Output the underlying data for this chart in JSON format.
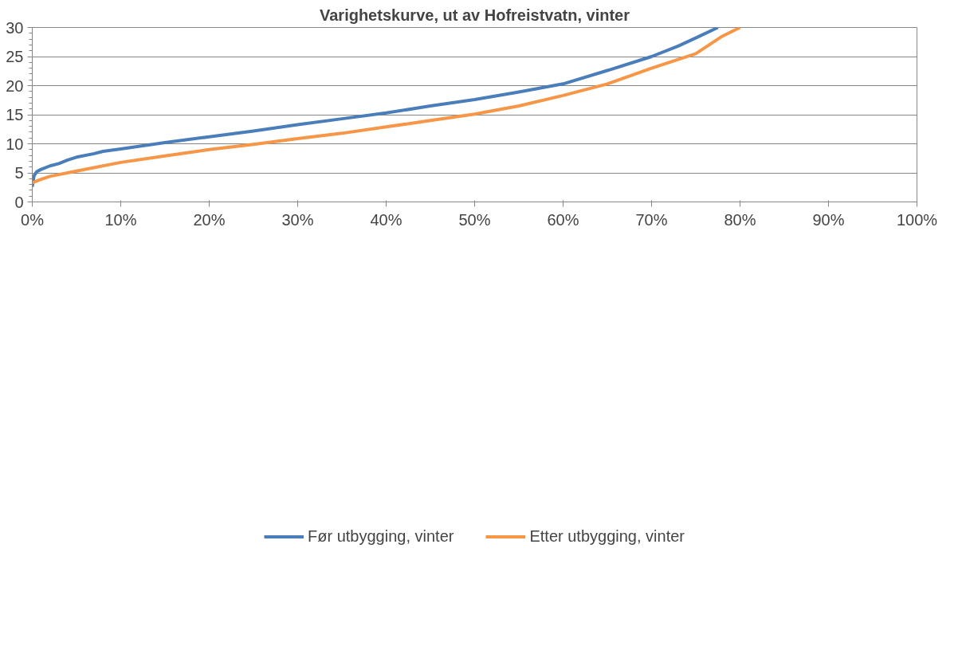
{
  "chart_data": {
    "type": "line",
    "title": "Varighetskurve, ut av Hofreistvatn, vinter",
    "xlim": [
      0,
      100
    ],
    "xticks": [
      {
        "value": 0,
        "label": "0%"
      },
      {
        "value": 10,
        "label": "10%"
      },
      {
        "value": 20,
        "label": "20%"
      },
      {
        "value": 30,
        "label": "30%"
      },
      {
        "value": 40,
        "label": "40%"
      },
      {
        "value": 50,
        "label": "50%"
      },
      {
        "value": 60,
        "label": "60%"
      },
      {
        "value": 70,
        "label": "70%"
      },
      {
        "value": 80,
        "label": "80%"
      },
      {
        "value": 90,
        "label": "90%"
      },
      {
        "value": 100,
        "label": "100%"
      }
    ],
    "ylim": [
      0,
      30
    ],
    "yticks": [
      0,
      5,
      10,
      15,
      20,
      25,
      30
    ],
    "grid": "y",
    "legend": "bottom",
    "marker": "none",
    "line_style": "solid",
    "series": [
      {
        "name": "Før utbygging, vinter",
        "color": "#4a7ebb",
        "x": [
          0,
          0.2,
          0.5,
          1,
          2,
          3,
          4,
          5,
          7,
          8,
          10,
          15,
          20,
          25,
          30,
          35,
          40,
          45,
          50,
          55,
          60,
          65,
          70,
          73,
          75,
          77.5
        ],
        "values": [
          2.6,
          4.5,
          5.2,
          5.6,
          6.2,
          6.6,
          7.2,
          7.7,
          8.3,
          8.7,
          9.1,
          10.2,
          11.2,
          12.2,
          13.3,
          14.3,
          15.3,
          16.5,
          17.6,
          18.9,
          20.3,
          22.6,
          25.0,
          26.8,
          28.2,
          30
        ]
      },
      {
        "name": "Etter utbygging, vinter",
        "color": "#f79646",
        "x": [
          0,
          1,
          2,
          5,
          10,
          15,
          20,
          25,
          30,
          35,
          40,
          45,
          50,
          55,
          60,
          65,
          70,
          75,
          78,
          80
        ],
        "values": [
          3.3,
          3.9,
          4.4,
          5.3,
          6.8,
          7.9,
          9.0,
          9.9,
          10.9,
          11.8,
          12.9,
          14.0,
          15.1,
          16.5,
          18.3,
          20.3,
          23.0,
          25.5,
          28.5,
          30
        ]
      }
    ]
  }
}
